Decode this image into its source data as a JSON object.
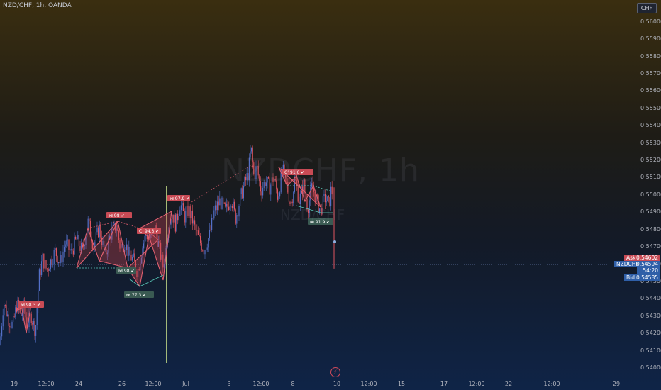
{
  "header": {
    "symbol_line": "NZD/CHF, 1h, OANDA",
    "currency_button": "CHF"
  },
  "watermark": {
    "main": "NZDCHF, 1h",
    "sub": "NZD/CHF"
  },
  "chart_data": {
    "type": "candlestick",
    "title": "",
    "y_ticks": [
      "0.56000",
      "0.55900",
      "0.55800",
      "0.55700",
      "0.55600",
      "0.55500",
      "0.55400",
      "0.55300",
      "0.55200",
      "0.55100",
      "0.55000",
      "0.54900",
      "0.54800",
      "0.54700",
      "0.54600",
      "0.54500",
      "0.54400",
      "0.54300",
      "0.54200",
      "0.54100",
      "0.54000"
    ],
    "ylim": [
      0.5399,
      0.5607
    ],
    "x_ticks": [
      "19",
      "12:00",
      "24",
      "26",
      "12:00",
      "Jul",
      "3",
      "12:00",
      "8",
      "10",
      "12:00",
      "15",
      "17",
      "12:00",
      "22",
      "12:00",
      "29"
    ],
    "price_path": [
      [
        0,
        0.5413
      ],
      [
        5,
        0.5438
      ],
      [
        12,
        0.5428
      ],
      [
        18,
        0.5424
      ],
      [
        24,
        0.5437
      ],
      [
        29,
        0.5429
      ],
      [
        34,
        0.5436
      ],
      [
        38,
        0.5424
      ],
      [
        44,
        0.543
      ],
      [
        50,
        0.5421
      ],
      [
        55,
        0.5452
      ],
      [
        60,
        0.5463
      ],
      [
        66,
        0.5456
      ],
      [
        72,
        0.5462
      ],
      [
        78,
        0.5467
      ],
      [
        85,
        0.546
      ],
      [
        92,
        0.5472
      ],
      [
        100,
        0.5466
      ],
      [
        108,
        0.5474
      ],
      [
        116,
        0.5467
      ],
      [
        124,
        0.5484
      ],
      [
        132,
        0.547
      ],
      [
        140,
        0.5481
      ],
      [
        148,
        0.5464
      ],
      [
        156,
        0.5477
      ],
      [
        164,
        0.5482
      ],
      [
        170,
        0.5468
      ],
      [
        176,
        0.5473
      ],
      [
        182,
        0.5465
      ],
      [
        188,
        0.5462
      ],
      [
        194,
        0.5455
      ],
      [
        200,
        0.5468
      ],
      [
        206,
        0.5477
      ],
      [
        212,
        0.5474
      ],
      [
        218,
        0.5481
      ],
      [
        224,
        0.547
      ],
      [
        230,
        0.5458
      ],
      [
        236,
        0.5478
      ],
      [
        242,
        0.549
      ],
      [
        248,
        0.5482
      ],
      [
        254,
        0.5495
      ],
      [
        260,
        0.5487
      ],
      [
        266,
        0.5491
      ],
      [
        272,
        0.5484
      ],
      [
        280,
        0.5474
      ],
      [
        288,
        0.5468
      ],
      [
        296,
        0.5477
      ],
      [
        302,
        0.549
      ],
      [
        310,
        0.5496
      ],
      [
        318,
        0.549
      ],
      [
        326,
        0.5498
      ],
      [
        332,
        0.5486
      ],
      [
        338,
        0.5496
      ],
      [
        344,
        0.5505
      ],
      [
        350,
        0.5512
      ],
      [
        354,
        0.5527
      ],
      [
        358,
        0.551
      ],
      [
        362,
        0.5516
      ],
      [
        368,
        0.5502
      ],
      [
        374,
        0.5508
      ],
      [
        380,
        0.5504
      ],
      [
        386,
        0.551
      ],
      [
        392,
        0.5498
      ],
      [
        398,
        0.5515
      ],
      [
        404,
        0.5506
      ],
      [
        410,
        0.5494
      ],
      [
        416,
        0.5509
      ],
      [
        422,
        0.5496
      ],
      [
        428,
        0.5506
      ],
      [
        434,
        0.5492
      ],
      [
        440,
        0.5505
      ],
      [
        446,
        0.5497
      ],
      [
        452,
        0.549
      ],
      [
        458,
        0.5498
      ],
      [
        464,
        0.5494
      ],
      [
        468,
        0.5506
      ],
      [
        470,
        0.5459
      ]
    ],
    "current": {
      "ask": "0.54602",
      "symbol": "NZDCHF",
      "last": "0.54594",
      "countdown": "54:20",
      "bid": "0.54585",
      "ask_label": "Ask",
      "bid_label": "Bid"
    },
    "patterns": [
      {
        "label": "⋈ 98.3 ✔",
        "color": "#c84b55"
      },
      {
        "label": "⋈ 98 ✔",
        "color": "#c84b55"
      },
      {
        "label": "C’ 94.3 ✔",
        "color": "#c84b55"
      },
      {
        "label": "⋈ 98 ✔",
        "color": "#3a5a52"
      },
      {
        "label": "⋈ 77.3 ✔",
        "color": "#3a5a52"
      },
      {
        "label": "⋈ 97.9 ✔",
        "color": "#c84b55"
      },
      {
        "label": "C’ 91.6 ✔",
        "color": "#c84b55"
      },
      {
        "label": "⋈ 91.9 ✔",
        "color": "#3a5a52"
      }
    ],
    "colors": {
      "up": "#5470c8",
      "down": "#e05560",
      "vline": "#c8e08a",
      "pattern": "#e06070",
      "pattern_teal": "#58c8b8",
      "grid_price": "#6a7fae"
    }
  },
  "bolt_icon": "⚡"
}
